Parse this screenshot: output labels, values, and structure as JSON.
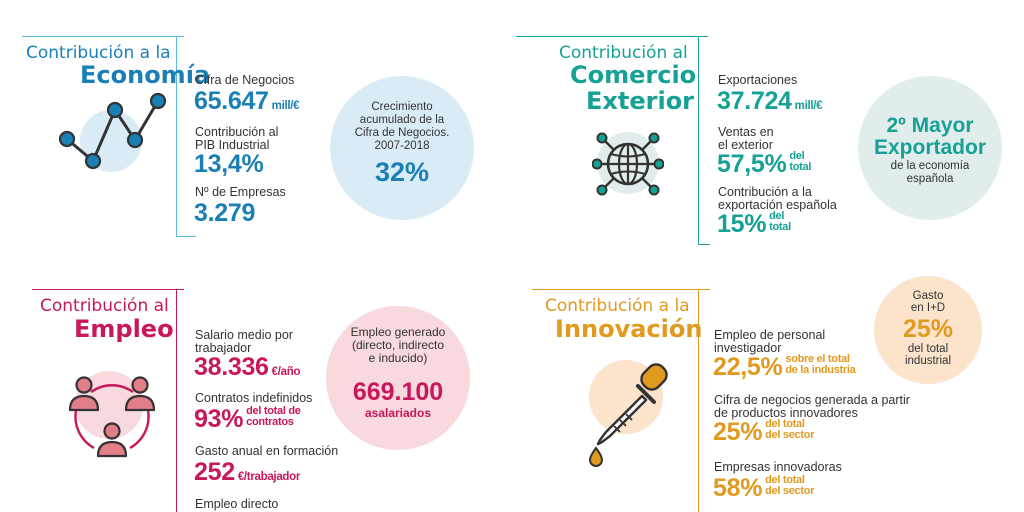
{
  "colors": {
    "economia": "#1a7fb4",
    "economia_line": "#5bbbd9",
    "economia_bg": "#d9ecf5",
    "comercio": "#16a195",
    "comercio_bg": "#e1ecec",
    "empleo": "#c8175b",
    "empleo_bg": "#f7d9de",
    "innovacion": "#e19a1e",
    "innovacion_bg": "#fbe3cc"
  },
  "economia": {
    "title_line1": "Contribución a la",
    "title_line2": "Economía",
    "icon": "line-chart-icon",
    "cifra_label": "Cifra de Negocios",
    "cifra_value": "65.647",
    "cifra_unit": "mill/€",
    "pib_label_1": "Contribución al",
    "pib_label_2": "PIB Industrial",
    "pib_value": "13,4%",
    "empresas_label": "Nº de Empresas",
    "empresas_value": "3.279",
    "circle_l1": "Crecimiento",
    "circle_l2": "acumulado de la",
    "circle_l3": "Cifra de Negocios.",
    "circle_l4": "2007-2018",
    "circle_value": "32%"
  },
  "comercio": {
    "title_line1": "Contribución al",
    "title_line2": "Comercio",
    "title_line3": "Exterior",
    "icon": "globe-network-icon",
    "export_label": "Exportaciones",
    "export_value": "37.724",
    "export_unit": "mill/€",
    "ventas_label_1": "Ventas en",
    "ventas_label_2": "el exterior",
    "ventas_value": "57,5%",
    "ventas_unit_1": "del",
    "ventas_unit_2": "total",
    "contrib_label_1": "Contribución a la",
    "contrib_label_2": "exportación española",
    "contrib_value": "15%",
    "contrib_unit_1": "del",
    "contrib_unit_2": "total",
    "circle_l1": "2º Mayor",
    "circle_l2": "Exportador",
    "circle_l3": "de la economía",
    "circle_l4": "española"
  },
  "empleo": {
    "title_line1": "Contribución al",
    "title_line2": "Empleo",
    "icon": "people-network-icon",
    "salario_label_1": "Salario medio por",
    "salario_label_2": "trabajador",
    "salario_value": "38.336",
    "salario_unit": "€/año",
    "contratos_label": "Contratos indefinidos",
    "contratos_value": "93%",
    "contratos_unit_1": "del total de",
    "contratos_unit_2": "contratos",
    "gasto_label": "Gasto anual en formación",
    "gasto_value": "252",
    "gasto_unit": "€/trabajador",
    "directo_label": "Empleo directo",
    "circle_l1": "Empleo generado",
    "circle_l2": "(directo, indirecto",
    "circle_l3": "e inducido)",
    "circle_value": "669.100",
    "circle_unit": "asalariados"
  },
  "innovacion": {
    "title_line1": "Contribución a la",
    "title_line2": "Innovación",
    "icon": "dropper-icon",
    "personal_label_1": "Empleo de personal",
    "personal_label_2": "investigador",
    "personal_value": "22,5%",
    "personal_unit_1": "sobre el total",
    "personal_unit_2": "de la industria",
    "cifra_label_1": "Cifra de negocios generada a partir",
    "cifra_label_2": "de productos innovadores",
    "cifra_value": "25%",
    "cifra_unit_1": "del total",
    "cifra_unit_2": "del sector",
    "empresas_label": "Empresas innovadoras",
    "empresas_value": "58%",
    "empresas_unit_1": "del total",
    "empresas_unit_2": "del sector",
    "circle_l1": "Gasto",
    "circle_l2": "en I+D",
    "circle_value": "25%",
    "circle_l3": "del total",
    "circle_l4": "industrial"
  }
}
